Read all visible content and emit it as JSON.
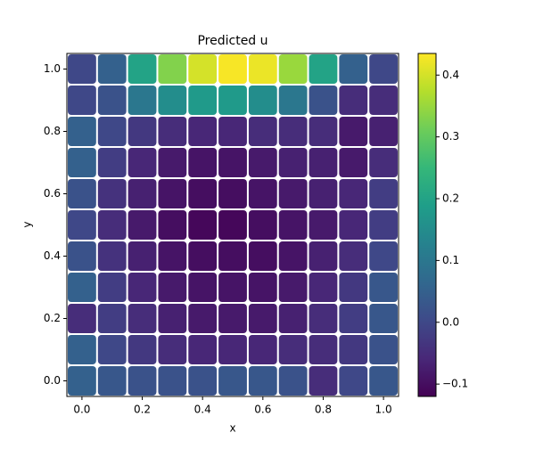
{
  "chart_data": {
    "type": "scatter",
    "title": "Predicted u",
    "x_label": "x",
    "y_label": "y",
    "x": [
      0.0,
      0.1,
      0.2,
      0.3,
      0.4,
      0.5,
      0.6,
      0.7,
      0.8,
      0.9,
      1.0
    ],
    "y": [
      0.0,
      0.1,
      0.2,
      0.3,
      0.4,
      0.5,
      0.6,
      0.7,
      0.8,
      0.9,
      1.0
    ],
    "values": [
      [
        0.05,
        0.03,
        0.02,
        0.02,
        0.02,
        0.03,
        0.03,
        0.02,
        -0.05,
        0.0,
        0.03
      ],
      [
        0.05,
        0.0,
        -0.03,
        -0.05,
        -0.06,
        -0.06,
        -0.06,
        -0.05,
        -0.05,
        -0.03,
        0.02
      ],
      [
        -0.05,
        -0.02,
        -0.05,
        -0.07,
        -0.08,
        -0.08,
        -0.08,
        -0.07,
        -0.05,
        -0.02,
        0.03
      ],
      [
        0.05,
        -0.02,
        -0.06,
        -0.08,
        -0.09,
        -0.09,
        -0.09,
        -0.08,
        -0.06,
        -0.03,
        0.03
      ],
      [
        0.02,
        -0.04,
        -0.07,
        -0.09,
        -0.1,
        -0.1,
        -0.1,
        -0.09,
        -0.07,
        -0.05,
        0.0
      ],
      [
        0.0,
        -0.05,
        -0.08,
        -0.1,
        -0.11,
        -0.11,
        -0.1,
        -0.09,
        -0.08,
        -0.06,
        -0.02
      ],
      [
        0.02,
        -0.04,
        -0.07,
        -0.09,
        -0.1,
        -0.1,
        -0.09,
        -0.08,
        -0.07,
        -0.06,
        -0.02
      ],
      [
        0.05,
        -0.02,
        -0.06,
        -0.08,
        -0.09,
        -0.09,
        -0.08,
        -0.07,
        -0.07,
        -0.08,
        -0.05
      ],
      [
        0.05,
        0.0,
        -0.03,
        -0.05,
        -0.06,
        -0.06,
        -0.05,
        -0.05,
        -0.05,
        -0.08,
        -0.07
      ],
      [
        0.0,
        0.02,
        0.1,
        0.15,
        0.18,
        0.18,
        0.15,
        0.1,
        0.02,
        -0.05,
        -0.05
      ],
      [
        0.0,
        0.05,
        0.2,
        0.33,
        0.4,
        0.43,
        0.42,
        0.35,
        0.2,
        0.05,
        0.0
      ]
    ],
    "xlim": [
      -0.05,
      1.05
    ],
    "ylim": [
      -0.05,
      1.05
    ],
    "xticks": [
      {
        "value": 0.0,
        "label": "0.0"
      },
      0.2,
      0.4,
      0.6,
      0.8,
      {
        "value": 1.0,
        "label": "1.0"
      }
    ],
    "yticks": [
      {
        "value": 0.0,
        "label": "0.0"
      },
      0.2,
      0.4,
      0.6,
      0.8,
      {
        "value": 1.0,
        "label": "1.0"
      }
    ],
    "colormap": "viridis",
    "clim": [
      -0.12,
      0.435
    ],
    "cticks": [
      {
        "value": -0.1,
        "label": "−0.1"
      },
      {
        "value": 0.0,
        "label": "0.0"
      },
      0.1,
      0.2,
      0.3,
      0.4
    ]
  }
}
